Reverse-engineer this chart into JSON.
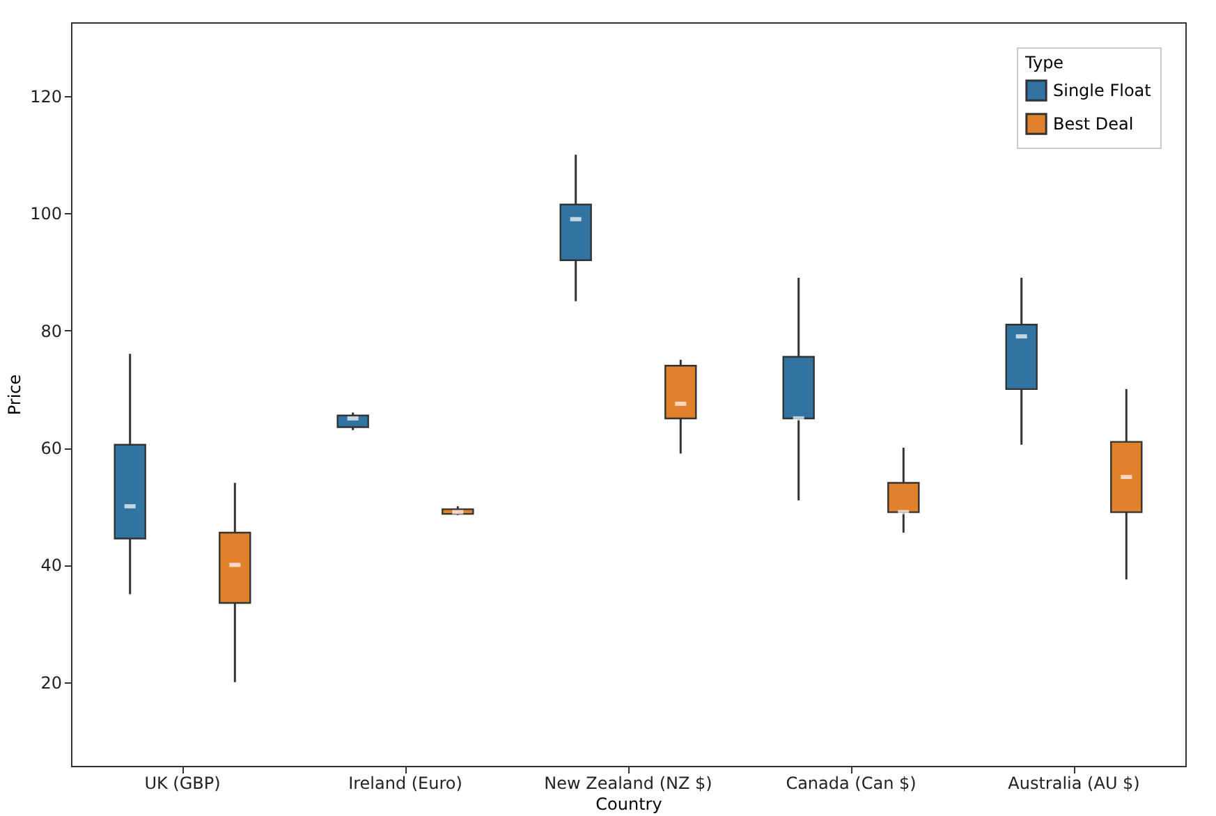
{
  "chart_data": {
    "type": "box",
    "xlabel": "Country",
    "ylabel": "Price",
    "legend_title": "Type",
    "categories": [
      "UK (GBP)",
      "Ireland (Euro)",
      "New Zealand (NZ $)",
      "Canada (Can $)",
      "Australia (AU $)"
    ],
    "series": [
      {
        "name": "Single Float",
        "color": "#3274a1",
        "boxes": [
          {
            "low": 35,
            "q1": 44.5,
            "median": 50,
            "q3": 60.5,
            "high": 76
          },
          {
            "low": 63,
            "q1": 63.5,
            "median": 65,
            "q3": 65.5,
            "high": 66
          },
          {
            "low": 85,
            "q1": 92,
            "median": 99,
            "q3": 101.5,
            "high": 110
          },
          {
            "low": 51,
            "q1": 65,
            "median": 65,
            "q3": 75.5,
            "high": 89
          },
          {
            "low": 60.5,
            "q1": 70,
            "median": 79,
            "q3": 81,
            "high": 89
          }
        ]
      },
      {
        "name": "Best Deal",
        "color": "#e1812c",
        "boxes": [
          {
            "low": 20,
            "q1": 33.5,
            "median": 40,
            "q3": 45.5,
            "high": 54
          },
          {
            "low": 48.5,
            "q1": 48.7,
            "median": 49,
            "q3": 49.5,
            "high": 50
          },
          {
            "low": 59,
            "q1": 65,
            "median": 67.5,
            "q3": 74,
            "high": 75
          },
          {
            "low": 45.5,
            "q1": 49,
            "median": 49,
            "q3": 54,
            "high": 60
          },
          {
            "low": 37.5,
            "q1": 49,
            "median": 55,
            "q3": 61,
            "high": 70
          }
        ]
      }
    ],
    "ylim": [
      5.7,
      132.6
    ],
    "yticks": [
      20,
      40,
      60,
      80,
      100,
      120
    ],
    "legend": "top right"
  }
}
